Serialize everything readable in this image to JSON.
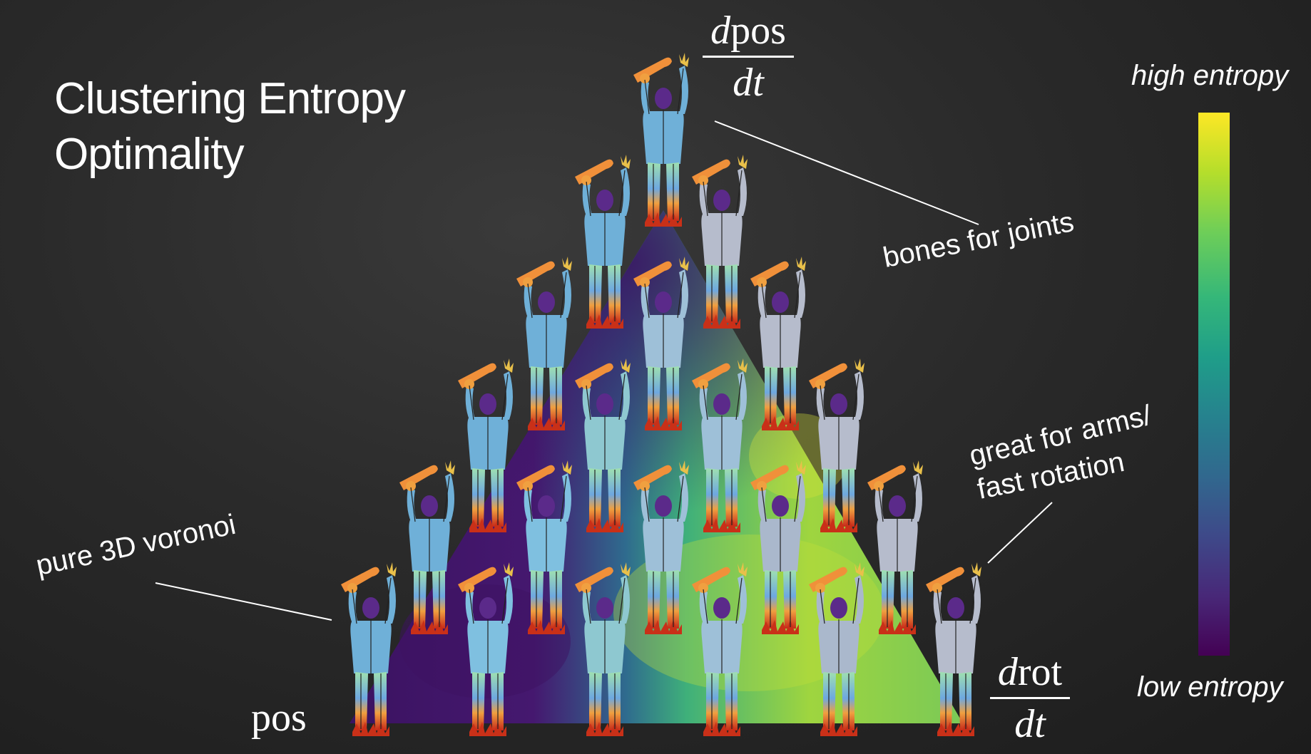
{
  "title": [
    "Clustering Entropy",
    "Optimality"
  ],
  "vertices": {
    "bottom_left": "pos",
    "top": {
      "numerator_d": "d",
      "numerator": "pos",
      "denominator": "dt"
    },
    "bottom_right": {
      "numerator_d": "d",
      "numerator": "rot",
      "denominator": "dt"
    }
  },
  "annotations": {
    "top": "bones for joints",
    "left": "pure 3D voronoi",
    "right_line1": "great for arms/",
    "right_line2": "fast rotation"
  },
  "colorbar": {
    "top_label": "high entropy",
    "bottom_label": "low entropy",
    "colormap": [
      "#440154",
      "#482878",
      "#3e4989",
      "#31688e",
      "#26828e",
      "#1f9e89",
      "#35b779",
      "#6ece58",
      "#b5de2b",
      "#fde725"
    ]
  },
  "figure_colors": {
    "background": "#252525",
    "low": "#4a1a6e",
    "mid": "#2f8a8c",
    "high": "#b8d93a"
  }
}
